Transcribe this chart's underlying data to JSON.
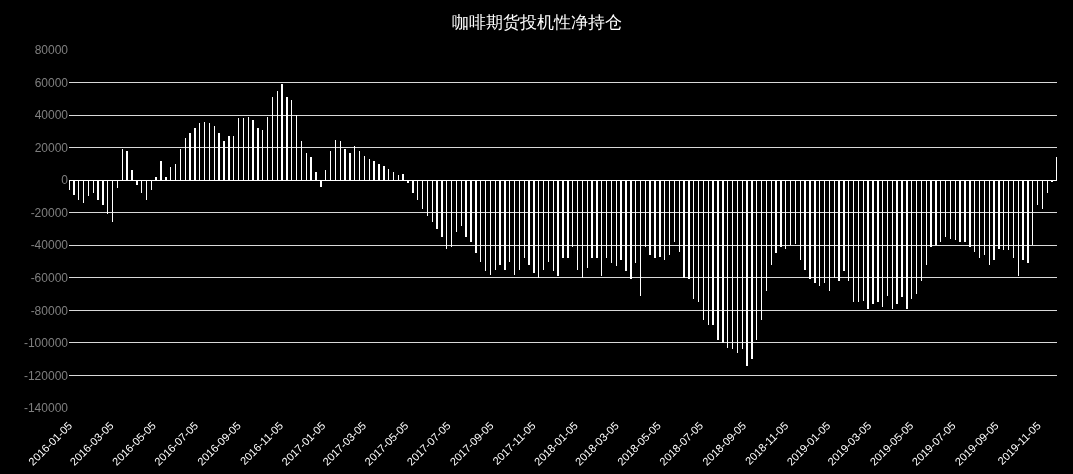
{
  "chart_data": {
    "type": "bar",
    "title": "咖啡期货投机性净持仓",
    "x": [
      "2016-01-05",
      "2016-01-12",
      "2016-01-19",
      "2016-01-26",
      "2016-02-02",
      "2016-02-09",
      "2016-02-16",
      "2016-02-23",
      "2016-03-01",
      "2016-03-08",
      "2016-03-15",
      "2016-03-22",
      "2016-03-29",
      "2016-04-05",
      "2016-04-12",
      "2016-04-19",
      "2016-04-26",
      "2016-05-03",
      "2016-05-10",
      "2016-05-17",
      "2016-05-24",
      "2016-05-31",
      "2016-06-07",
      "2016-06-14",
      "2016-06-21",
      "2016-06-28",
      "2016-07-05",
      "2016-07-12",
      "2016-07-19",
      "2016-07-26",
      "2016-08-02",
      "2016-08-09",
      "2016-08-16",
      "2016-08-23",
      "2016-08-30",
      "2016-09-06",
      "2016-09-13",
      "2016-09-20",
      "2016-09-27",
      "2016-10-04",
      "2016-10-11",
      "2016-10-18",
      "2016-10-25",
      "2016-11-01",
      "2016-11-08",
      "2016-11-15",
      "2016-11-22",
      "2016-11-29",
      "2016-12-06",
      "2016-12-13",
      "2016-12-20",
      "2016-12-27",
      "2017-01-03",
      "2017-01-10",
      "2017-01-17",
      "2017-01-24",
      "2017-01-31",
      "2017-02-07",
      "2017-02-14",
      "2017-02-21",
      "2017-02-28",
      "2017-03-07",
      "2017-03-14",
      "2017-03-21",
      "2017-03-28",
      "2017-04-04",
      "2017-04-11",
      "2017-04-18",
      "2017-04-25",
      "2017-05-02",
      "2017-05-09",
      "2017-05-16",
      "2017-05-23",
      "2017-05-30",
      "2017-06-06",
      "2017-06-13",
      "2017-06-20",
      "2017-06-27",
      "2017-07-04",
      "2017-07-11",
      "2017-07-18",
      "2017-07-25",
      "2017-08-01",
      "2017-08-08",
      "2017-08-15",
      "2017-08-22",
      "2017-08-29",
      "2017-09-05",
      "2017-09-12",
      "2017-09-19",
      "2017-09-26",
      "2017-10-03",
      "2017-10-10",
      "2017-10-17",
      "2017-10-24",
      "2017-10-31",
      "2017-11-07",
      "2017-11-14",
      "2017-11-21",
      "2017-11-28",
      "2017-12-05",
      "2017-12-12",
      "2017-12-19",
      "2017-12-26",
      "2018-01-02",
      "2018-01-09",
      "2018-01-16",
      "2018-01-23",
      "2018-01-30",
      "2018-02-06",
      "2018-02-13",
      "2018-02-20",
      "2018-02-27",
      "2018-03-06",
      "2018-03-13",
      "2018-03-20",
      "2018-03-27",
      "2018-04-03",
      "2018-04-10",
      "2018-04-17",
      "2018-04-24",
      "2018-05-01",
      "2018-05-08",
      "2018-05-15",
      "2018-05-22",
      "2018-05-29",
      "2018-06-05",
      "2018-06-12",
      "2018-06-19",
      "2018-06-26",
      "2018-07-03",
      "2018-07-10",
      "2018-07-17",
      "2018-07-24",
      "2018-07-31",
      "2018-08-07",
      "2018-08-14",
      "2018-08-21",
      "2018-08-28",
      "2018-09-04",
      "2018-09-11",
      "2018-09-18",
      "2018-09-25",
      "2018-10-02",
      "2018-10-09",
      "2018-10-16",
      "2018-10-23",
      "2018-10-30",
      "2018-11-06",
      "2018-11-13",
      "2018-11-20",
      "2018-11-27",
      "2018-12-04",
      "2018-12-11",
      "2018-12-18",
      "2018-12-25",
      "2019-01-01",
      "2019-01-08",
      "2019-01-15",
      "2019-01-22",
      "2019-01-29",
      "2019-02-05",
      "2019-02-12",
      "2019-02-19",
      "2019-02-26",
      "2019-03-05",
      "2019-03-12",
      "2019-03-19",
      "2019-03-26",
      "2019-04-02",
      "2019-04-09",
      "2019-04-16",
      "2019-04-23",
      "2019-04-30",
      "2019-05-07",
      "2019-05-14",
      "2019-05-21",
      "2019-05-28",
      "2019-06-04",
      "2019-06-11",
      "2019-06-18",
      "2019-06-25",
      "2019-07-02",
      "2019-07-09",
      "2019-07-16",
      "2019-07-23",
      "2019-07-30",
      "2019-08-06",
      "2019-08-13",
      "2019-08-20",
      "2019-08-27",
      "2019-09-03",
      "2019-09-10",
      "2019-09-17",
      "2019-09-24",
      "2019-10-01",
      "2019-10-08",
      "2019-10-15",
      "2019-10-22",
      "2019-10-29",
      "2019-11-05",
      "2019-11-12",
      "2019-11-19",
      "2019-11-26",
      "2019-12-03"
    ],
    "values": [
      -6000,
      -9000,
      -12000,
      -14000,
      -10000,
      -8000,
      -12000,
      -15000,
      -21000,
      -26000,
      -5000,
      19000,
      18000,
      6000,
      -3000,
      -8000,
      -12000,
      -6000,
      2000,
      12000,
      2000,
      8000,
      10000,
      19000,
      26000,
      29000,
      32000,
      35000,
      36000,
      35000,
      33000,
      29000,
      24000,
      27000,
      27000,
      38000,
      38000,
      39000,
      37000,
      32000,
      31000,
      39000,
      51000,
      55000,
      59000,
      51000,
      49000,
      40000,
      24000,
      17000,
      14000,
      5000,
      -4000,
      6000,
      18000,
      25000,
      24000,
      19000,
      17000,
      21000,
      18000,
      15000,
      13000,
      12000,
      10000,
      9000,
      7000,
      5000,
      3000,
      4000,
      -2000,
      -8000,
      -12000,
      -18000,
      -22000,
      -26000,
      -30000,
      -35000,
      -42000,
      -41000,
      -32000,
      -28000,
      -35000,
      -38000,
      -45000,
      -50000,
      -56000,
      -58000,
      -55000,
      -52000,
      -55000,
      -50000,
      -58000,
      -55000,
      -48000,
      -52000,
      -57000,
      -60000,
      -55000,
      -50000,
      -56000,
      -59000,
      -48000,
      -48000,
      -41000,
      -55000,
      -60000,
      -54000,
      -48000,
      -48000,
      -59000,
      -48000,
      -51000,
      -53000,
      -49000,
      -56000,
      -61000,
      -51000,
      -71000,
      -41000,
      -46000,
      -48000,
      -47000,
      -49000,
      -46000,
      -38000,
      -44000,
      -60000,
      -61000,
      -73000,
      -75000,
      -86000,
      -89000,
      -89000,
      -98000,
      -100000,
      -103000,
      -104000,
      -106000,
      -104000,
      -114000,
      -110000,
      -98000,
      -86000,
      -68000,
      -52000,
      -45000,
      -41000,
      -42000,
      -40000,
      -39000,
      -49000,
      -55000,
      -61000,
      -63000,
      -65000,
      -63000,
      -68000,
      -60000,
      -62000,
      -56000,
      -62000,
      -75000,
      -75000,
      -74000,
      -79000,
      -76000,
      -75000,
      -78000,
      -71000,
      -79000,
      -76000,
      -72000,
      -79000,
      -73000,
      -70000,
      -62000,
      -52000,
      -41000,
      -40000,
      -38000,
      -35000,
      -36000,
      -37000,
      -38000,
      -38000,
      -41000,
      -44000,
      -48000,
      -46000,
      -52000,
      -49000,
      -42000,
      -43000,
      -43000,
      -48000,
      -59000,
      -49000,
      -51000,
      -40000,
      -15000,
      -18000,
      -8000,
      -1000,
      14000
    ],
    "color": "#ffffff",
    "xlim": [
      "2016-01-05",
      "2019-12-03"
    ],
    "xticks": [
      "2016-01-05",
      "2016-03-05",
      "2016-05-05",
      "2016-07-05",
      "2016-09-05",
      "2016-11-05",
      "2017-01-05",
      "2017-03-05",
      "2017-05-05",
      "2017-07-05",
      "2017-09-05",
      "2017-11-05",
      "2018-01-05",
      "2018-03-05",
      "2018-05-05",
      "2018-07-05",
      "2018-09-05",
      "2018-11-05",
      "2019-01-05",
      "2019-03-05",
      "2019-05-05",
      "2019-07-05",
      "2019-09-05",
      "2019-11-05"
    ],
    "ylim": [
      -140000,
      80000
    ],
    "yticks": [
      -140000,
      -120000,
      -100000,
      -80000,
      -60000,
      -40000,
      -20000,
      0,
      20000,
      40000,
      60000,
      80000
    ],
    "grid": "y"
  }
}
